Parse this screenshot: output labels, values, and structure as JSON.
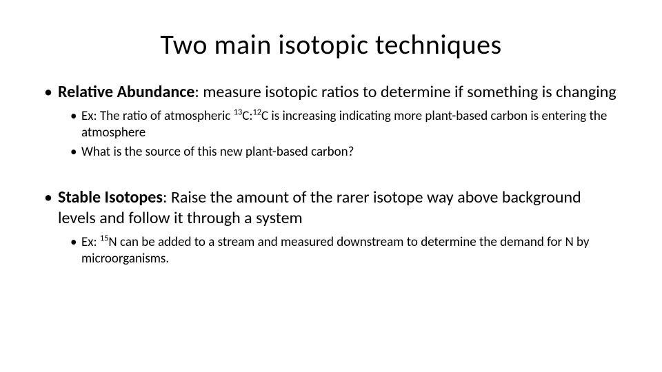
{
  "slide": {
    "title": "Two main isotopic techniques",
    "background_color": "#ffffff",
    "text_color": "#000000",
    "title_fontsize": 40,
    "body_fontsize_l1": 24,
    "body_fontsize_l2": 19,
    "font_family": "Calibri",
    "sections": [
      {
        "heading_bold": "Relative Abundance",
        "heading_rest": ": measure isotopic ratios to determine if something is changing",
        "sub_bullets": [
          {
            "prefix": "Ex: The ratio of atmospheric ",
            "sup1": "13",
            "mid1": "C:",
            "sup2": "12",
            "mid2": "C is increasing indicating more plant-based carbon is entering the atmosphere"
          },
          {
            "text": "What is the source of this new plant-based carbon?"
          }
        ]
      },
      {
        "heading_bold": "Stable Isotopes",
        "heading_rest": ": Raise the amount of the rarer isotope way above background levels and follow it through a system",
        "sub_bullets": [
          {
            "prefix": "Ex: ",
            "sup1": "15",
            "mid1": "N can be added to a stream and measured downstream to determine the demand for N by microorganisms."
          }
        ]
      }
    ]
  }
}
